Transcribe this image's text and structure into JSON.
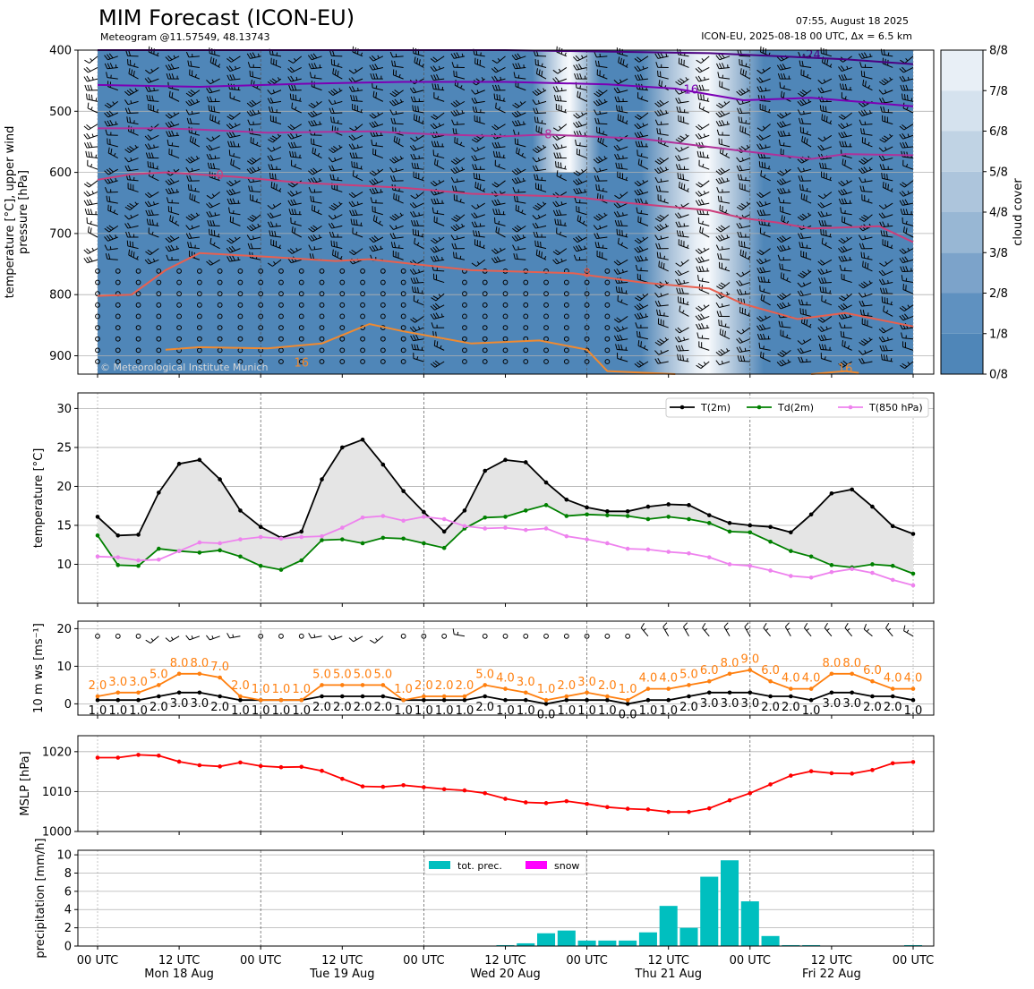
{
  "header": {
    "title": "MIM Forecast (ICON-EU)",
    "subtitle": "Meteogram @11.57549, 48.13743",
    "issued": "07:55, August 18 2025",
    "run": "ICON-EU, 2025-08-18 00 UTC, Δx = 6.5 km",
    "copyright": "© Meteorological Institute Munich"
  },
  "colors": {
    "t2m": "#000000",
    "td2m": "#008000",
    "t850": "#ee82ee",
    "spread": "#e5e5e5",
    "wind_mean": "#000000",
    "wind_gust": "#ff7f0e",
    "mslp": "#ff0000",
    "precip": "#00bfbf",
    "snow": "#ff00ff",
    "cloud_dark": "#4f86b8",
    "cloud_light": "#f3f7fb"
  },
  "time_axis": {
    "start": "2025-08-18 00 UTC",
    "step_hours": 3,
    "tick_labels": [
      {
        "hour": 0,
        "label": "00 UTC",
        "day": ""
      },
      {
        "hour": 12,
        "label": "12 UTC",
        "day": "Mon 18 Aug"
      },
      {
        "hour": 24,
        "label": "00 UTC",
        "day": ""
      },
      {
        "hour": 36,
        "label": "12 UTC",
        "day": "Tue 19 Aug"
      },
      {
        "hour": 48,
        "label": "00 UTC",
        "day": ""
      },
      {
        "hour": 60,
        "label": "12 UTC",
        "day": "Wed 20 Aug"
      },
      {
        "hour": 72,
        "label": "00 UTC",
        "day": ""
      },
      {
        "hour": 84,
        "label": "12 UTC",
        "day": "Thu 21 Aug"
      },
      {
        "hour": 96,
        "label": "00 UTC",
        "day": ""
      },
      {
        "hour": 108,
        "label": "12 UTC",
        "day": "Fri 22 Aug"
      },
      {
        "hour": 120,
        "label": "00 UTC",
        "day": ""
      }
    ]
  },
  "chart_data": [
    {
      "type": "heatmap",
      "ylabel": "temperature [$^\\circ$C], upper wind\npressure [hPa]",
      "ylim": [
        930,
        400
      ],
      "yticks": [
        400,
        500,
        600,
        700,
        800,
        900
      ],
      "colorbar": {
        "label": "cloud cover",
        "ticks": [
          "0/8",
          "1/8",
          "2/8",
          "3/8",
          "4/8",
          "5/8",
          "6/8",
          "7/8",
          "8/8"
        ]
      },
      "cloud_clear_bands": [
        {
          "from_hour": 64,
          "to_hour": 74,
          "levels": [
            400,
            600
          ]
        },
        {
          "from_hour": 80,
          "to_hour": 98,
          "levels": [
            400,
            930
          ]
        }
      ],
      "isotherms": [
        {
          "label": "-24",
          "hour": 105,
          "p": 408,
          "color": "#4b0082",
          "points": [
            [
              0,
              400
            ],
            [
              60,
              400
            ],
            [
              90,
              405
            ],
            [
              100,
              410
            ],
            [
              110,
              415
            ],
            [
              120,
              423
            ]
          ]
        },
        {
          "label": "-16",
          "hour": 87,
          "p": 465,
          "color": "#7b00b5",
          "points": [
            [
              0,
              457
            ],
            [
              15,
              460
            ],
            [
              30,
              455
            ],
            [
              45,
              452
            ],
            [
              60,
              452
            ],
            [
              75,
              456
            ],
            [
              85,
              463
            ],
            [
              95,
              482
            ],
            [
              105,
              478
            ],
            [
              120,
              492
            ]
          ]
        },
        {
          "label": "-8",
          "hour": 66,
          "p": 538,
          "color": "#b0309a",
          "points": [
            [
              0,
              528
            ],
            [
              10,
              528
            ],
            [
              15,
              530
            ],
            [
              25,
              535
            ],
            [
              40,
              533
            ],
            [
              50,
              538
            ],
            [
              60,
              541
            ],
            [
              66,
              538
            ],
            [
              80,
              545
            ],
            [
              95,
              565
            ],
            [
              105,
              578
            ],
            [
              110,
              570
            ],
            [
              120,
              572
            ]
          ]
        },
        {
          "label": "0",
          "hour": 18,
          "p": 605,
          "color": "#cc3d7a",
          "points": [
            [
              0,
              612
            ],
            [
              5,
              603
            ],
            [
              10,
              600
            ],
            [
              20,
              607
            ],
            [
              30,
              617
            ],
            [
              45,
              625
            ],
            [
              55,
              635
            ],
            [
              70,
              640
            ],
            [
              78,
              650
            ],
            [
              90,
              662
            ],
            [
              95,
              675
            ],
            [
              100,
              682
            ],
            [
              105,
              692
            ],
            [
              115,
              688
            ],
            [
              120,
              714
            ]
          ]
        },
        {
          "label": "8",
          "hour": 72,
          "p": 765,
          "color": "#e8604f",
          "points": [
            [
              0,
              802
            ],
            [
              5,
              800
            ],
            [
              10,
              760
            ],
            [
              15,
              732
            ],
            [
              25,
              738
            ],
            [
              35,
              745
            ],
            [
              40,
              742
            ],
            [
              45,
              748
            ],
            [
              55,
              760
            ],
            [
              70,
              765
            ],
            [
              80,
              780
            ],
            [
              90,
              790
            ],
            [
              95,
              815
            ],
            [
              103,
              840
            ],
            [
              110,
              830
            ],
            [
              120,
              852
            ]
          ]
        },
        {
          "label": "16",
          "hour": 30,
          "p": 912,
          "color": "#f08a30",
          "points": [
            [
              10,
              890
            ],
            [
              15,
              886
            ],
            [
              25,
              888
            ],
            [
              33,
              880
            ],
            [
              40,
              848
            ],
            [
              45,
              860
            ],
            [
              55,
              880
            ],
            [
              65,
              875
            ],
            [
              72,
              890
            ],
            [
              75,
              925
            ],
            [
              85,
              930
            ]
          ]
        },
        {
          "label": "16",
          "hour": 110,
          "p": 921,
          "color": "#f08a30",
          "points": [
            [
              105,
              930
            ],
            [
              110,
              925
            ],
            [
              112,
              928
            ]
          ]
        }
      ]
    },
    {
      "type": "line",
      "ylabel": "temperature [$^\\circ$C]",
      "ylim": [
        5,
        32
      ],
      "yticks": [
        10,
        15,
        20,
        25,
        30
      ],
      "x_hours": [
        0,
        3,
        6,
        9,
        12,
        15,
        18,
        21,
        24,
        27,
        30,
        33,
        36,
        39,
        42,
        45,
        48,
        51,
        54,
        57,
        60,
        63,
        66,
        69,
        72,
        75,
        78,
        81,
        84,
        87,
        90,
        93,
        96,
        99,
        102,
        105,
        108,
        111,
        114,
        117,
        120
      ],
      "series": [
        {
          "name": "T(2m)",
          "values": [
            16.1,
            13.7,
            13.8,
            19.2,
            22.9,
            23.4,
            20.9,
            16.9,
            14.8,
            13.4,
            14.2,
            20.9,
            25.0,
            26.0,
            22.8,
            19.4,
            16.7,
            14.2,
            16.9,
            22.0,
            23.4,
            23.1,
            20.5,
            18.3,
            17.3,
            16.8,
            16.8,
            17.4,
            17.7,
            17.6,
            16.3,
            15.3,
            15.0,
            14.8,
            14.1,
            16.4,
            19.1,
            19.6,
            17.4,
            14.9,
            13.9
          ]
        },
        {
          "name": "Td(2m)",
          "values": [
            13.7,
            9.9,
            9.8,
            12.0,
            11.7,
            11.5,
            11.8,
            11.0,
            9.8,
            9.3,
            10.5,
            13.1,
            13.2,
            12.7,
            13.4,
            13.3,
            12.7,
            12.1,
            14.6,
            16.0,
            16.1,
            16.9,
            17.6,
            16.2,
            16.4,
            16.3,
            16.2,
            15.8,
            16.1,
            15.8,
            15.3,
            14.2,
            14.1,
            12.9,
            11.7,
            11.0,
            9.9,
            9.6,
            10.0,
            9.8,
            8.8
          ]
        },
        {
          "name": "T(850 hPa)",
          "values": [
            11.0,
            10.9,
            10.5,
            10.6,
            11.7,
            12.8,
            12.7,
            13.2,
            13.5,
            13.3,
            13.5,
            13.6,
            14.7,
            16.0,
            16.2,
            15.6,
            16.1,
            15.8,
            14.9,
            14.6,
            14.7,
            14.4,
            14.6,
            13.6,
            13.2,
            12.7,
            12.0,
            11.9,
            11.6,
            11.4,
            10.9,
            10.0,
            9.8,
            9.2,
            8.5,
            8.3,
            9.0,
            9.4,
            8.9,
            8.0,
            7.3
          ]
        }
      ]
    },
    {
      "type": "line",
      "ylabel": "10 m ws [ms$^{-1}$]",
      "ylim": [
        -3,
        22
      ],
      "yticks": [
        0,
        10,
        20
      ],
      "x_hours": [
        0,
        3,
        6,
        9,
        12,
        15,
        18,
        21,
        24,
        27,
        30,
        33,
        36,
        39,
        42,
        45,
        48,
        51,
        54,
        57,
        60,
        63,
        66,
        69,
        72,
        75,
        78,
        81,
        84,
        87,
        90,
        93,
        96,
        99,
        102,
        105,
        108,
        111,
        114,
        117,
        120
      ],
      "series": [
        {
          "name": "mean",
          "values": [
            1.0,
            1.0,
            1.0,
            2.0,
            3.0,
            3.0,
            2.0,
            1.0,
            1.0,
            1.0,
            1.0,
            2.0,
            2.0,
            2.0,
            2.0,
            1.0,
            1.0,
            1.0,
            1.0,
            2.0,
            1.0,
            1.0,
            0.0,
            1.0,
            1.0,
            1.0,
            0.0,
            1.0,
            1.0,
            2.0,
            3.0,
            3.0,
            3.0,
            2.0,
            2.0,
            1.0,
            3.0,
            3.0,
            2.0,
            2.0,
            1.0
          ]
        },
        {
          "name": "gust",
          "values": [
            2.0,
            3.0,
            3.0,
            5.0,
            8.0,
            8.0,
            7.0,
            2.0,
            1.0,
            1.0,
            1.0,
            5.0,
            5.0,
            5.0,
            5.0,
            1.0,
            2.0,
            2.0,
            2.0,
            5.0,
            4.0,
            3.0,
            1.0,
            2.0,
            3.0,
            2.0,
            1.0,
            4.0,
            4.0,
            5.0,
            6.0,
            8.0,
            9.0,
            6.0,
            4.0,
            4.0,
            8.0,
            8.0,
            6.0,
            4.0,
            4.0
          ]
        }
      ],
      "wind_dir_deg": [
        null,
        null,
        null,
        230,
        240,
        250,
        250,
        260,
        null,
        null,
        null,
        260,
        250,
        240,
        230,
        null,
        null,
        null,
        280,
        null,
        null,
        null,
        null,
        null,
        null,
        null,
        null,
        320,
        330,
        330,
        320,
        330,
        330,
        320,
        330,
        320,
        320,
        320,
        310,
        320,
        300
      ]
    },
    {
      "type": "line",
      "ylabel": "MSLP [hPa]",
      "ylim": [
        1000,
        1024
      ],
      "yticks": [
        1000,
        1010,
        1020
      ],
      "x_hours": [
        0,
        3,
        6,
        9,
        12,
        15,
        18,
        21,
        24,
        27,
        30,
        33,
        36,
        39,
        42,
        45,
        48,
        51,
        54,
        57,
        60,
        63,
        66,
        69,
        72,
        75,
        78,
        81,
        84,
        87,
        90,
        93,
        96,
        99,
        102,
        105,
        108,
        111,
        114,
        117,
        120
      ],
      "series": [
        {
          "name": "MSLP",
          "values": [
            1018.5,
            1018.5,
            1019.2,
            1019.0,
            1017.5,
            1016.6,
            1016.3,
            1017.3,
            1016.4,
            1016.1,
            1016.2,
            1015.2,
            1013.2,
            1011.3,
            1011.2,
            1011.6,
            1011.1,
            1010.6,
            1010.3,
            1009.6,
            1008.2,
            1007.3,
            1007.1,
            1007.6,
            1006.9,
            1006.1,
            1005.7,
            1005.5,
            1004.9,
            1004.9,
            1005.8,
            1007.8,
            1009.6,
            1011.8,
            1014.0,
            1015.1,
            1014.6,
            1014.5,
            1015.4,
            1017.1,
            1017.4
          ]
        }
      ]
    },
    {
      "type": "bar",
      "ylabel": "precipitation [mm/h]",
      "ylim": [
        0,
        10.5
      ],
      "yticks": [
        0,
        2,
        4,
        6,
        8,
        10
      ],
      "x_hours": [
        0,
        3,
        6,
        9,
        12,
        15,
        18,
        21,
        24,
        27,
        30,
        33,
        36,
        39,
        42,
        45,
        48,
        51,
        54,
        57,
        60,
        63,
        66,
        69,
        72,
        75,
        78,
        81,
        84,
        87,
        90,
        93,
        96,
        99,
        102,
        105,
        108,
        111,
        114,
        117,
        120
      ],
      "series": [
        {
          "name": "tot. prec.",
          "values": [
            0,
            0,
            0,
            0,
            0,
            0,
            0,
            0,
            0,
            0,
            0,
            0,
            0,
            0,
            0,
            0,
            0,
            0,
            0,
            0,
            0.1,
            0.3,
            1.4,
            1.7,
            0.6,
            0.6,
            0.6,
            1.5,
            4.4,
            2.0,
            7.6,
            9.4,
            4.9,
            1.1,
            0.1,
            0.1,
            0,
            0,
            0,
            0,
            0.1
          ]
        },
        {
          "name": "snow",
          "values": [
            0,
            0,
            0,
            0,
            0,
            0,
            0,
            0,
            0,
            0,
            0,
            0,
            0,
            0,
            0,
            0,
            0,
            0,
            0,
            0,
            0,
            0,
            0,
            0,
            0,
            0,
            0,
            0,
            0,
            0,
            0,
            0,
            0,
            0,
            0,
            0,
            0,
            0,
            0,
            0,
            0
          ]
        }
      ]
    }
  ]
}
